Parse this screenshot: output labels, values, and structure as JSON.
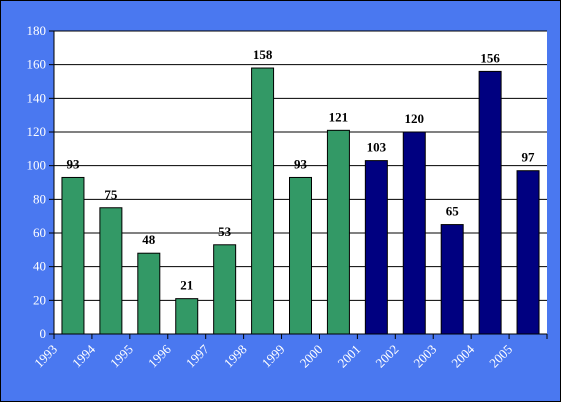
{
  "chart_data": {
    "type": "bar",
    "title": "",
    "xlabel": "",
    "ylabel": "",
    "ylim": [
      0,
      180
    ],
    "yticks": [
      0,
      20,
      40,
      60,
      80,
      100,
      120,
      140,
      160,
      180
    ],
    "grid": "horizontal",
    "categories": [
      "1993",
      "1994",
      "1995",
      "1996",
      "1997",
      "1998",
      "1999",
      "2000",
      "2001",
      "2002",
      "2003",
      "2004",
      "2005"
    ],
    "values": [
      93,
      75,
      48,
      21,
      53,
      158,
      93,
      121,
      103,
      120,
      65,
      156,
      97
    ],
    "bar_colors": [
      "#339966",
      "#339966",
      "#339966",
      "#339966",
      "#339966",
      "#339966",
      "#339966",
      "#339966",
      "#000080",
      "#000080",
      "#000080",
      "#000080",
      "#000080"
    ],
    "background_color": "#4a78f0",
    "plot_background_color": "#ffffff"
  }
}
